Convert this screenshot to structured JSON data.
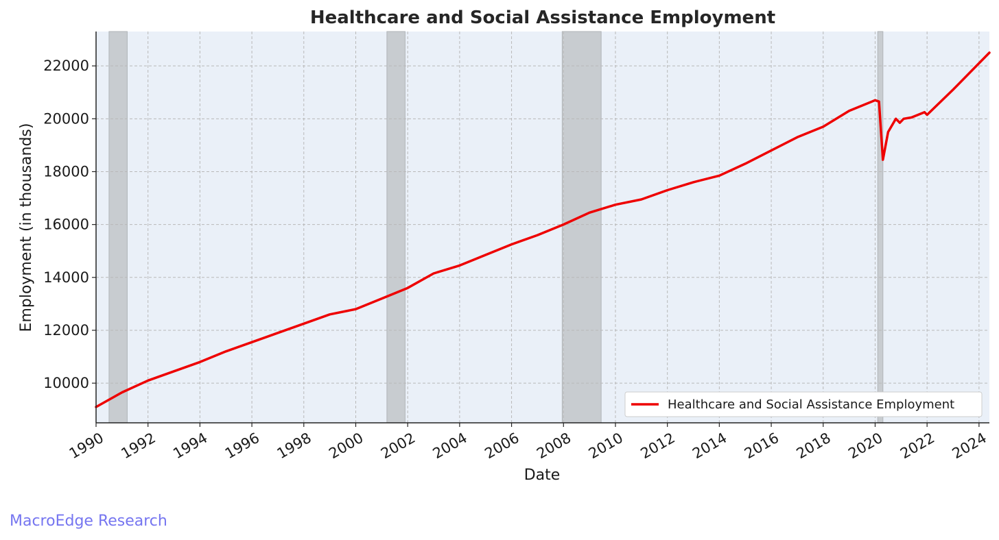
{
  "chart_data": {
    "type": "line",
    "title": "Healthcare and Social Assistance Employment",
    "xlabel": "Date",
    "ylabel": "Employment (in thousands)",
    "xlim": [
      1990.0,
      2024.4
    ],
    "ylim": [
      8500,
      23300
    ],
    "x_ticks": [
      1990,
      1992,
      1994,
      1996,
      1998,
      2000,
      2002,
      2004,
      2006,
      2008,
      2010,
      2012,
      2014,
      2016,
      2018,
      2020,
      2022,
      2024
    ],
    "y_ticks": [
      10000,
      12000,
      14000,
      16000,
      18000,
      20000,
      22000
    ],
    "grid": true,
    "legend_position": "lower-right",
    "recessions": [
      {
        "start": 1990.5,
        "end": 1991.2
      },
      {
        "start": 2001.2,
        "end": 2001.9
      },
      {
        "start": 2007.95,
        "end": 2009.45
      },
      {
        "start": 2020.1,
        "end": 2020.3
      }
    ],
    "series": [
      {
        "name": "Healthcare and Social Assistance Employment",
        "color": "#ee0000",
        "x": [
          1990.0,
          1991.0,
          1992.0,
          1993.0,
          1994.0,
          1995.0,
          1996.0,
          1997.0,
          1998.0,
          1999.0,
          2000.0,
          2001.0,
          2002.0,
          2003.0,
          2004.0,
          2005.0,
          2006.0,
          2007.0,
          2008.0,
          2009.0,
          2010.0,
          2011.0,
          2012.0,
          2013.0,
          2014.0,
          2015.0,
          2016.0,
          2017.0,
          2018.0,
          2019.0,
          2020.0,
          2020.15,
          2020.3,
          2020.5,
          2020.8,
          2020.95,
          2021.1,
          2021.4,
          2021.9,
          2022.0,
          2023.0,
          2024.4
        ],
        "y": [
          9100,
          9650,
          10100,
          10450,
          10800,
          11200,
          11550,
          11900,
          12250,
          12600,
          12800,
          13200,
          13600,
          14150,
          14450,
          14850,
          15250,
          15600,
          16000,
          16450,
          16750,
          16950,
          17300,
          17600,
          17850,
          18300,
          18800,
          19300,
          19700,
          20300,
          20700,
          20650,
          18450,
          19500,
          20000,
          19850,
          20000,
          20050,
          20250,
          20150,
          21100,
          22500
        ]
      }
    ]
  },
  "watermark": "MacroEdge Research"
}
